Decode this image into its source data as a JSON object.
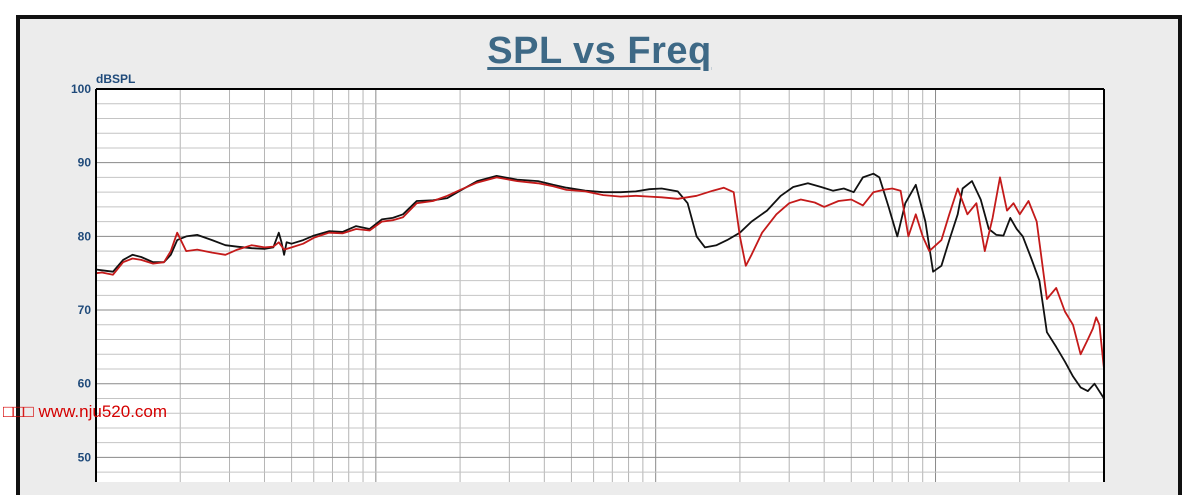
{
  "watermark": "□□□ www.nju520.com",
  "chart_data": {
    "type": "line",
    "title": "SPL vs Freq",
    "ylabel": "dBSPL",
    "xlabel": "",
    "xscale": "log",
    "xlim": [
      10,
      40000
    ],
    "ylim": [
      43,
      100
    ],
    "yticks": [
      100,
      90,
      80,
      70,
      60,
      50
    ],
    "grid": true,
    "series": [
      {
        "color": "#111111",
        "x": [
          10,
          10.5,
          11.5,
          12.5,
          13.5,
          14.5,
          16,
          17.5,
          18.5,
          19.5,
          21,
          23,
          26,
          29,
          32,
          36,
          40,
          43,
          45,
          46,
          47,
          48,
          50,
          55,
          60,
          68,
          76,
          85,
          95,
          105,
          115,
          125,
          140,
          160,
          180,
          200,
          230,
          270,
          320,
          380,
          430,
          480,
          560,
          650,
          750,
          850,
          950,
          1050,
          1200,
          1300,
          1400,
          1500,
          1650,
          1800,
          2000,
          2200,
          2500,
          2800,
          3100,
          3500,
          3900,
          4300,
          4700,
          5100,
          5500,
          6000,
          6300,
          6800,
          7300,
          7800,
          8500,
          9200,
          9800,
          10500,
          11200,
          12000,
          12500,
          13500,
          14500,
          15500,
          16500,
          17500,
          18500,
          19500,
          20500,
          22000,
          23500,
          25000,
          27000,
          29000,
          31000,
          33000,
          35000,
          37000,
          40000
        ],
        "y": [
          75.5,
          75.4,
          75.2,
          76.8,
          77.5,
          77.2,
          76.5,
          76.5,
          77.5,
          79.5,
          80,
          80.2,
          79.5,
          78.8,
          78.6,
          78.4,
          78.3,
          78.5,
          80.5,
          79.2,
          77.5,
          79.2,
          79,
          79.5,
          80.1,
          80.7,
          80.6,
          81.4,
          81,
          82.3,
          82.5,
          83,
          84.8,
          84.9,
          85.2,
          86.2,
          87.5,
          88.2,
          87.7,
          87.5,
          87,
          86.6,
          86.2,
          86,
          86,
          86.1,
          86.4,
          86.5,
          86.1,
          84.5,
          80,
          78.5,
          78.8,
          79.5,
          80.5,
          82,
          83.5,
          85.5,
          86.7,
          87.2,
          86.7,
          86.2,
          86.5,
          86,
          88,
          88.5,
          88,
          84,
          80,
          84.5,
          87,
          82,
          75.2,
          76,
          79.5,
          83,
          86.5,
          87.5,
          85,
          81,
          80.2,
          80.1,
          82.5,
          81,
          80,
          77,
          74,
          67,
          65,
          63,
          61,
          59.5,
          59,
          60,
          58
        ]
      },
      {
        "color": "#c41a1a",
        "x": [
          10,
          10.5,
          11.5,
          12.5,
          13.5,
          14.5,
          16,
          17.5,
          18.5,
          19.5,
          21,
          23,
          26,
          29,
          32,
          36,
          40,
          43,
          45,
          47,
          50,
          55,
          60,
          68,
          76,
          85,
          95,
          105,
          115,
          125,
          140,
          160,
          180,
          200,
          230,
          270,
          320,
          380,
          430,
          480,
          560,
          650,
          750,
          850,
          950,
          1050,
          1200,
          1400,
          1600,
          1750,
          1900,
          2000,
          2100,
          2200,
          2400,
          2700,
          3000,
          3300,
          3700,
          4000,
          4500,
          5000,
          5500,
          6000,
          6500,
          7000,
          7500,
          8000,
          8500,
          9000,
          9500,
          10500,
          11200,
          12000,
          13000,
          14000,
          15000,
          16000,
          17000,
          18000,
          19000,
          20000,
          21500,
          23000,
          25000,
          27000,
          29000,
          31000,
          33000,
          35000,
          36500,
          37500,
          38500,
          40000
        ],
        "y": [
          75,
          75.1,
          74.8,
          76.5,
          77,
          76.8,
          76.3,
          76.5,
          78,
          80.5,
          78,
          78.2,
          77.8,
          77.5,
          78.2,
          78.8,
          78.5,
          78.6,
          79.2,
          78.2,
          78.5,
          79,
          79.8,
          80.5,
          80.4,
          81,
          80.8,
          82,
          82.2,
          82.6,
          84.5,
          84.8,
          85.5,
          86.3,
          87.3,
          88,
          87.5,
          87.2,
          86.8,
          86.3,
          86.1,
          85.6,
          85.4,
          85.5,
          85.4,
          85.3,
          85.1,
          85.5,
          86.2,
          86.6,
          86,
          80,
          76,
          77.5,
          80.5,
          83,
          84.5,
          85,
          84.6,
          84,
          84.8,
          85,
          84.2,
          86,
          86.3,
          86.5,
          86.2,
          80,
          83,
          80,
          78,
          79.5,
          83,
          86.5,
          83,
          84.5,
          78,
          82.5,
          88,
          83.5,
          84.5,
          83,
          84.8,
          82,
          71.5,
          73,
          69.8,
          68,
          64,
          66,
          67.5,
          69,
          68,
          62
        ]
      }
    ]
  }
}
